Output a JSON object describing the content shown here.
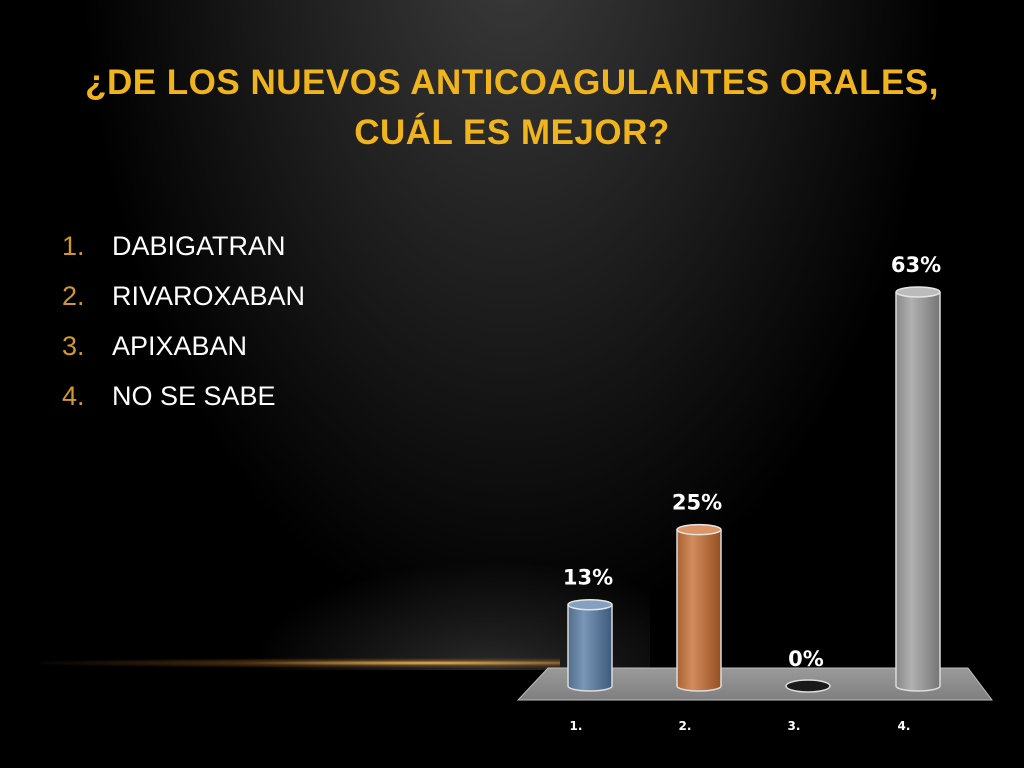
{
  "slide": {
    "title_lines": [
      "¿DE LOS NUEVOS ANTICOAGULANTES ORALES,",
      "CUÁL ES MEJOR?"
    ],
    "options": [
      {
        "num": "1.",
        "label": "DABIGATRAN"
      },
      {
        "num": "2.",
        "label": "RIVAROXABAN"
      },
      {
        "num": "3.",
        "label": "APIXABAN"
      },
      {
        "num": "4.",
        "label": "NO SE SABE"
      }
    ]
  },
  "chart_data": {
    "type": "bar",
    "categories": [
      "1.",
      "2.",
      "3.",
      "4."
    ],
    "values": [
      13,
      25,
      0,
      63
    ],
    "data_labels": [
      "13%",
      "25%",
      "0%",
      "63%"
    ],
    "colors": [
      "#6a87a8",
      "#c27c4e",
      "#a9a9a9",
      "#a2a2a2"
    ],
    "title": "",
    "xlabel": "",
    "ylabel": "",
    "ylim": [
      0,
      63
    ],
    "grid": false,
    "style": "3d-cylinder"
  }
}
